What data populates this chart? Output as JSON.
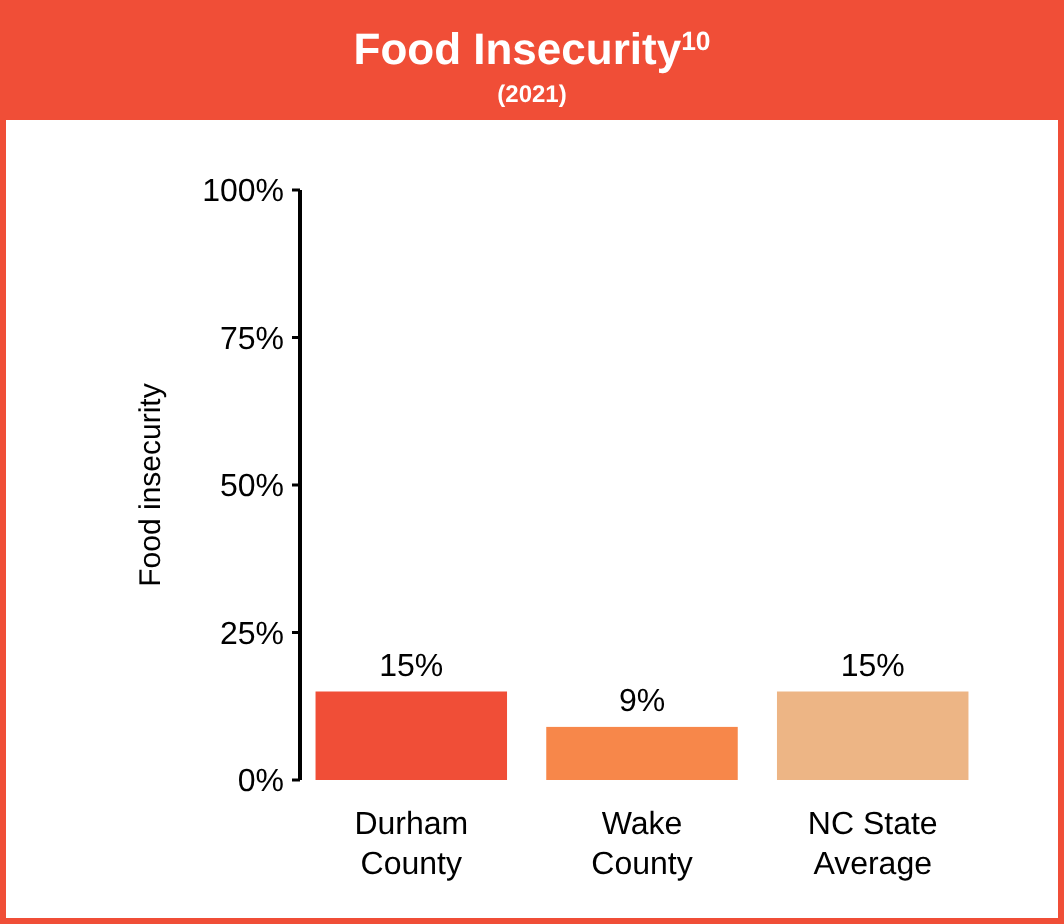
{
  "chart_data": {
    "type": "bar",
    "title": "Food Insecurity$^{10}$",
    "subtitle": "(2021)",
    "ylabel": "Food insecurity",
    "categories": [
      "Durham County",
      "Wake County",
      "NC State Average"
    ],
    "values": [
      15,
      9,
      15
    ],
    "colors": [
      "#f04e37",
      "#f7874a",
      "#edb585"
    ],
    "value_labels": [
      "15%",
      "9%",
      "15%"
    ],
    "ylim": [
      0,
      100
    ],
    "yticks": [
      {
        "value": 0,
        "label": "0%"
      },
      {
        "value": 25,
        "label": "25%"
      },
      {
        "value": 50,
        "label": "50%"
      },
      {
        "value": 75,
        "label": "75%"
      },
      {
        "value": 100,
        "label": "100%"
      }
    ],
    "grid": false
  }
}
